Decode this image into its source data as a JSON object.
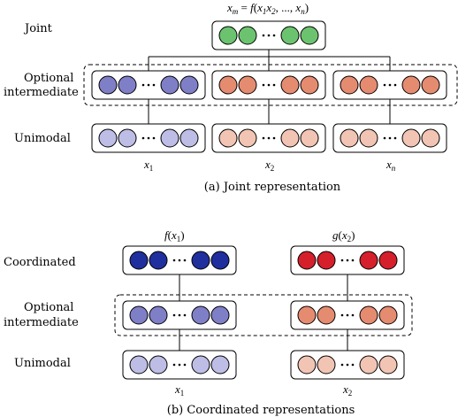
{
  "colors": {
    "joint_green": "#6cc36f",
    "intermediate_purple": "#7f7fc7",
    "unimodal_lavender": "#bdbde6",
    "intermediate_salmon": "#e58b70",
    "unimodal_peach": "#f2c4b3",
    "coordinated_blue": "#1f2f9e",
    "coordinated_red": "#d51f2a"
  },
  "joint_panel": {
    "row_labels": {
      "joint": "Joint",
      "optional_line1": "Optional",
      "optional_line2": "intermediate",
      "unimodal": "Unimodal"
    },
    "formula": {
      "lhs_var": "x",
      "lhs_sub": "m",
      "eq": " = ",
      "func": "f",
      "open": "(",
      "a_var": "x",
      "a_sub": "1",
      "b_var": "x",
      "b_sub": "2",
      "mid": ", ..., ",
      "c_var": "x",
      "c_sub": "n",
      "close": ")"
    },
    "modality_labels": [
      {
        "var": "x",
        "sub": "1"
      },
      {
        "var": "x",
        "sub": "2"
      },
      {
        "var": "x",
        "sub": "n"
      }
    ],
    "caption": "(a) Joint representation"
  },
  "coordinated_panel": {
    "row_labels": {
      "coordinated": "Coordinated",
      "optional_line1": "Optional",
      "optional_line2": "intermediate",
      "unimodal": "Unimodal"
    },
    "functions": [
      {
        "func": "f",
        "open": "(",
        "var": "x",
        "sub": "1",
        "close": ")"
      },
      {
        "func": "g",
        "open": "(",
        "var": "x",
        "sub": "2",
        "close": ")"
      }
    ],
    "modality_labels": [
      {
        "var": "x",
        "sub": "1"
      },
      {
        "var": "x",
        "sub": "2"
      }
    ],
    "caption": "(b) Coordinated representations"
  }
}
